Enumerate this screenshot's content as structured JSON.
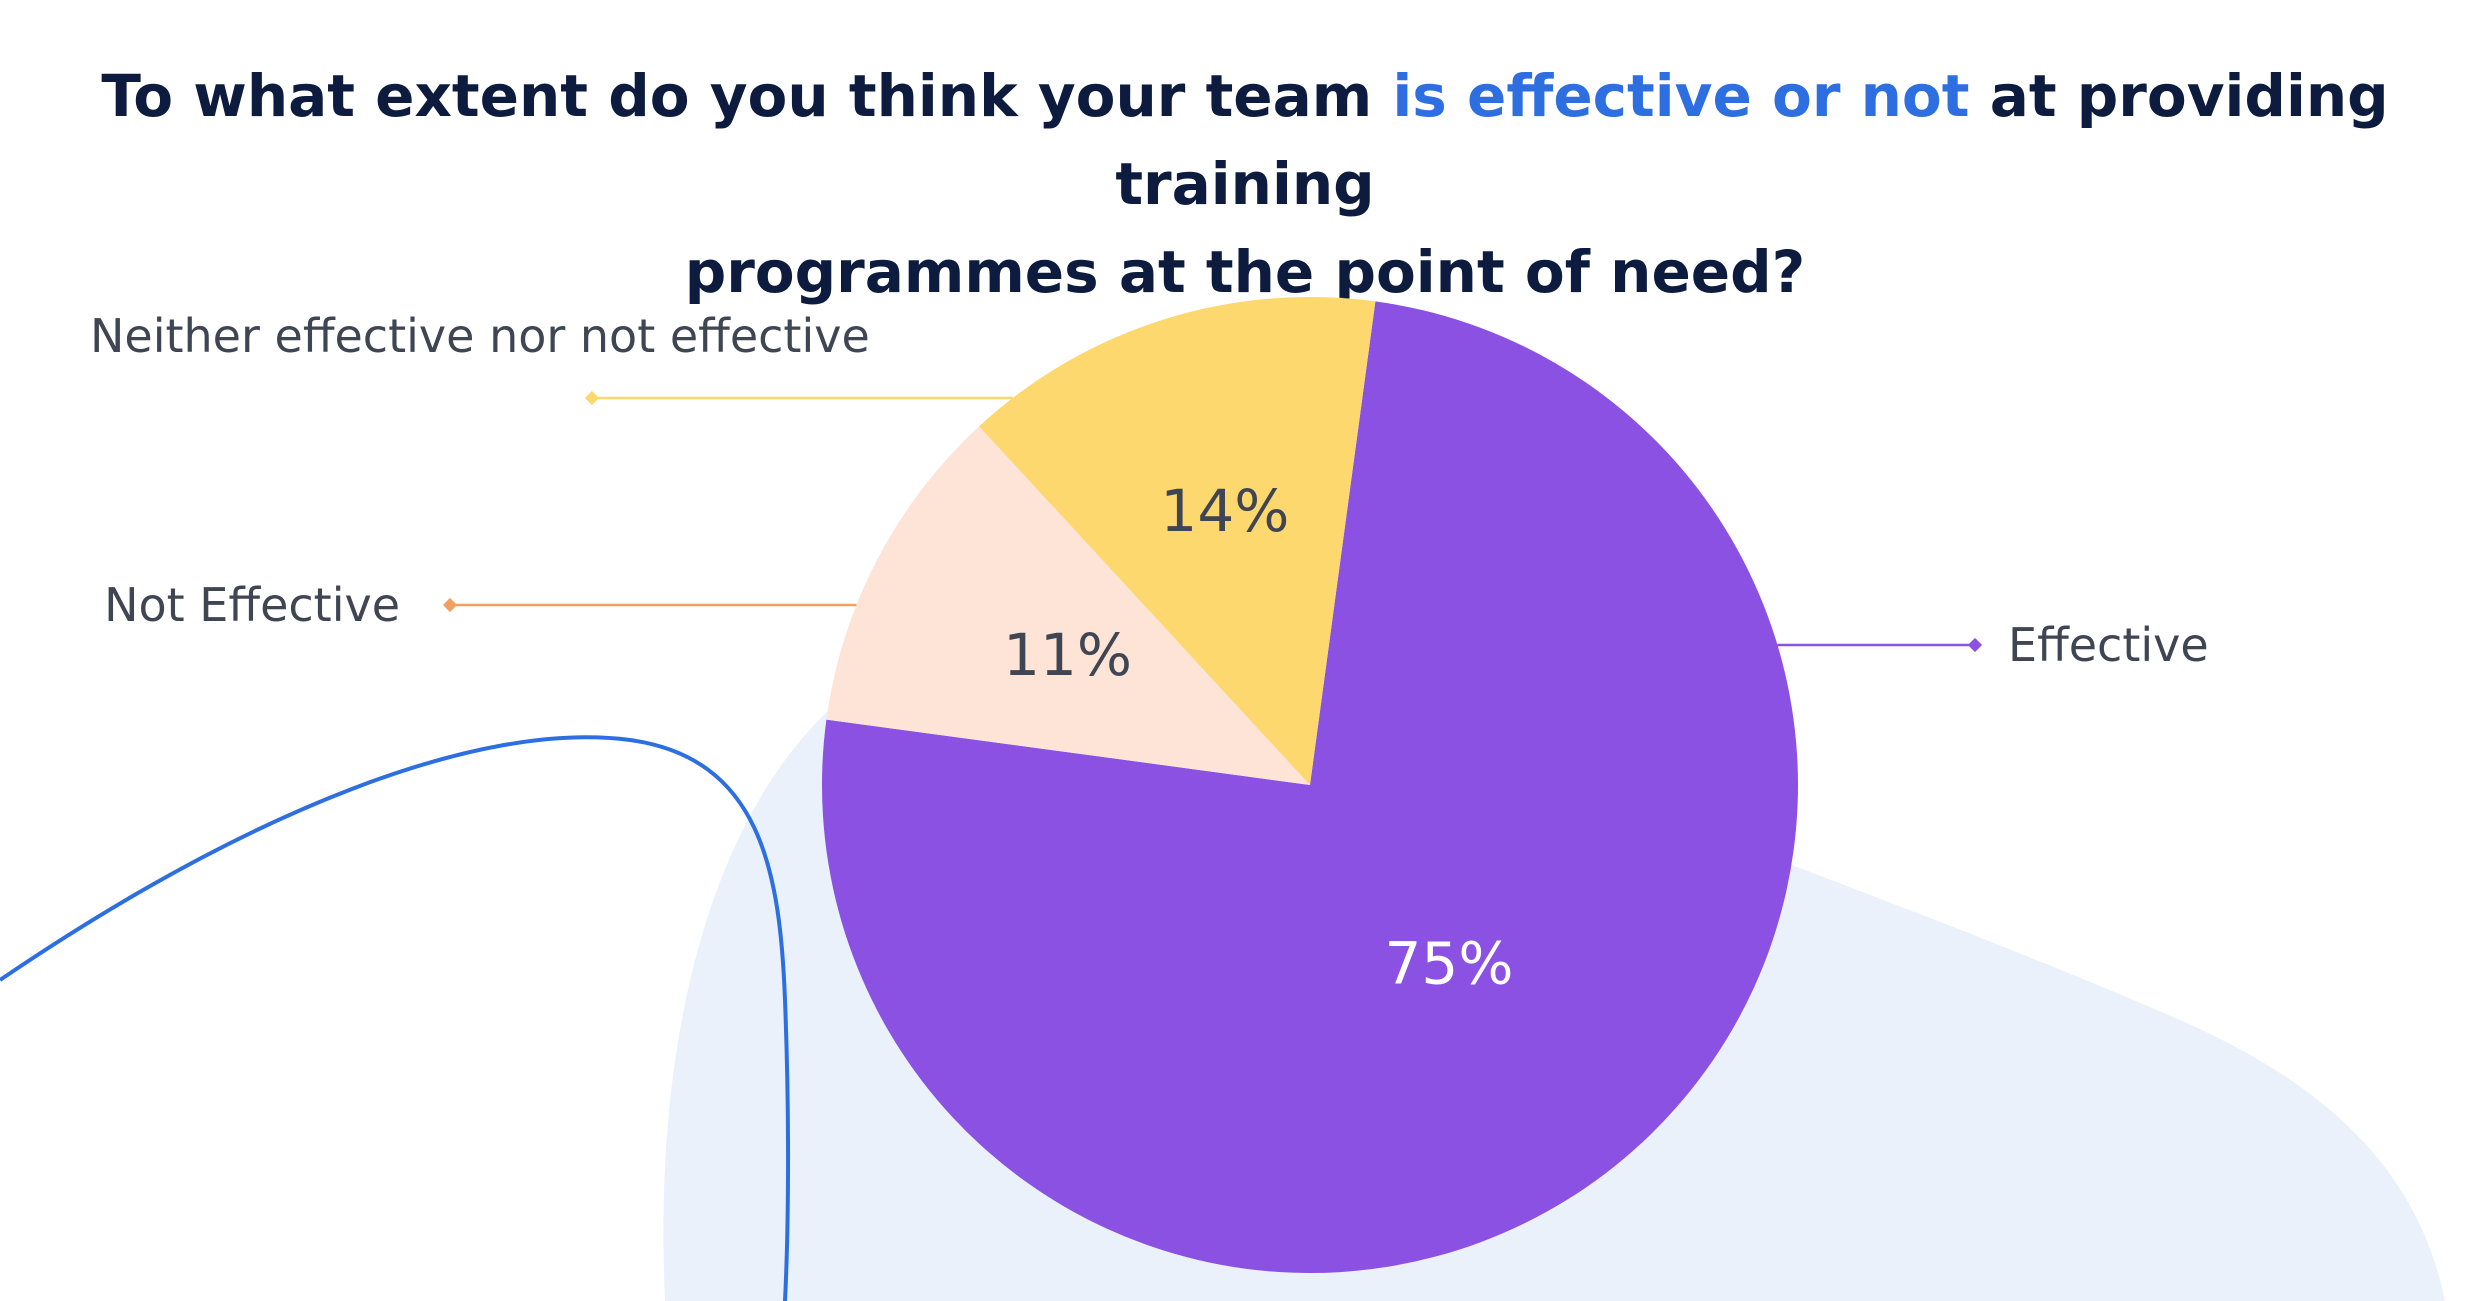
{
  "title": {
    "part1": "To what extent do you think your team ",
    "highlight": "is effective or not",
    "part2": " at providing training",
    "line2": "programmes at the point of need?"
  },
  "colors": {
    "title": "#0d1b3f",
    "highlight": "#2d6fe0",
    "background_blob": "#ebf1fb",
    "decorative_curve": "#2d6fe0",
    "label_text": "#3f4552"
  },
  "chart_data": {
    "type": "pie",
    "title": "To what extent do you think your team is effective or not at providing training programmes at the point of need?",
    "slices": [
      {
        "label": "Effective",
        "value": 75,
        "display": "75%",
        "color": "#8a51e3",
        "label_color": "#ffffff",
        "leader_color": "#8a51e3"
      },
      {
        "label": "Not Effective",
        "value": 11,
        "display": "11%",
        "color": "#fde4d6",
        "label_color": "#3f4552",
        "leader_color": "#f0a060"
      },
      {
        "label": "Neither effective nor not effective",
        "value": 14,
        "display": "14%",
        "color": "#fdd86e",
        "label_color": "#3f4552",
        "leader_color": "#fdd86e"
      }
    ],
    "legend": "leader-line labels"
  }
}
